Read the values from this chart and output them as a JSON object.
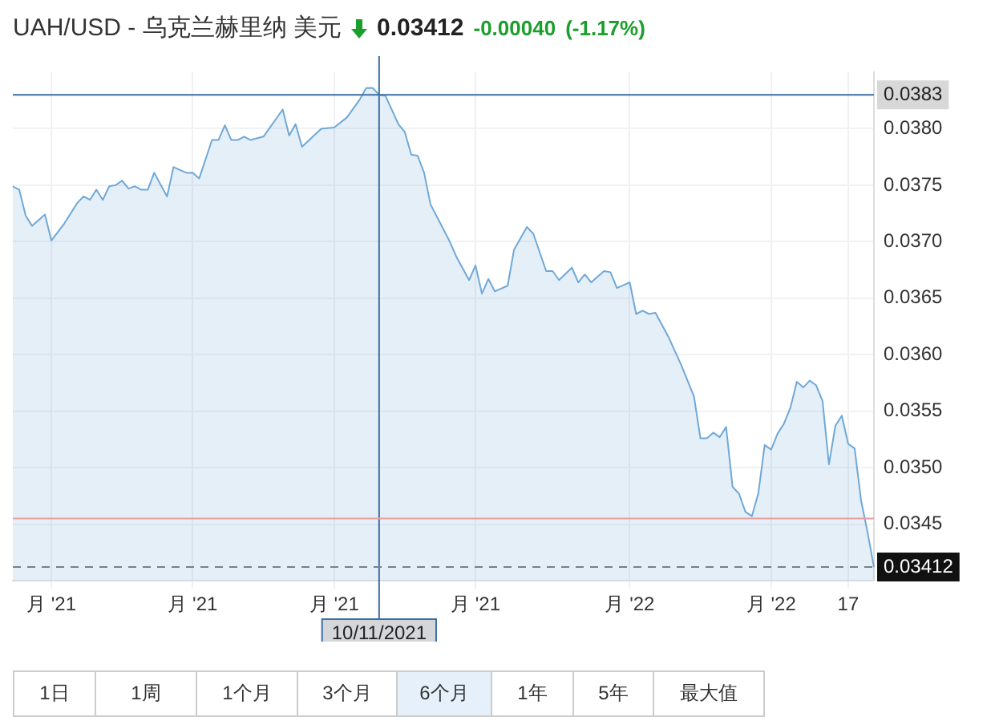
{
  "chart_data": {
    "type": "area",
    "title": "UAH/USD - 乌克兰赫里纳 美元",
    "annotations": [
      "0.03412",
      "-0.00040",
      "(-1.17%)",
      "1日",
      "1周",
      "1个月",
      "3个月",
      "6个月",
      "1年",
      "5年",
      "最大值"
    ],
    "categories": [
      null,
      null,
      null,
      null,
      null,
      null,
      "月 '21",
      null,
      null,
      null,
      null,
      null,
      null,
      null,
      null,
      null,
      null,
      null,
      null,
      null,
      null,
      null,
      null,
      null,
      null,
      null,
      null,
      null,
      "月 '21",
      null,
      null,
      null,
      null,
      null,
      null,
      null,
      null,
      null,
      null,
      null,
      null,
      null,
      null,
      null,
      null,
      null,
      null,
      null,
      null,
      null,
      "月 '21",
      null,
      null,
      null,
      null,
      null,
      null,
      "10/11/2021",
      null,
      null,
      null,
      null,
      null,
      null,
      null,
      null,
      null,
      null,
      null,
      null,
      null,
      null,
      "月 '21",
      null,
      null,
      null,
      null,
      null,
      null,
      null,
      null,
      null,
      null,
      null,
      null,
      null,
      null,
      null,
      null,
      null,
      null,
      null,
      null,
      null,
      null,
      null,
      "月 '22",
      null,
      null,
      null,
      null,
      null,
      null,
      null,
      null,
      null,
      null,
      null,
      null,
      null,
      null,
      null,
      null,
      null,
      null,
      null,
      null,
      null,
      "月 '22",
      null,
      null,
      null,
      null,
      null,
      null,
      null,
      null,
      null,
      null,
      null,
      "17",
      null,
      null,
      null,
      null
    ],
    "series": [
      {
        "color": "#6fa8d8",
        "values": [
          0.03749,
          0.03746,
          0.03723,
          0.03714,
          null,
          0.03724,
          0.03701,
          null,
          0.03716,
          null,
          0.03734,
          0.0374,
          0.03737,
          0.03746,
          0.03737,
          0.03749,
          0.0375,
          0.03754,
          0.03747,
          0.03749,
          0.03746,
          0.03746,
          0.03761,
          null,
          0.0374,
          0.03766,
          null,
          0.03761,
          0.03761,
          0.03756,
          null,
          0.0379,
          0.0379,
          0.03803,
          0.0379,
          0.0379,
          0.03793,
          0.0379,
          null,
          0.03793,
          null,
          null,
          0.03817,
          0.03794,
          0.03804,
          0.03784,
          null,
          null,
          0.038,
          null,
          0.03801,
          null,
          0.0381,
          null,
          0.03826,
          0.03836,
          0.03836,
          0.0383,
          0.03829,
          null,
          0.03804,
          0.03797,
          0.03777,
          0.03776,
          0.03761,
          0.03733,
          null,
          null,
          0.037,
          0.03687,
          null,
          0.03666,
          0.03679,
          0.03654,
          0.03667,
          0.03656,
          null,
          0.03661,
          0.03693,
          null,
          0.03713,
          0.03707,
          null,
          0.03674,
          0.03674,
          0.03666,
          null,
          0.03677,
          0.03664,
          0.03671,
          0.03664,
          null,
          0.03674,
          0.03673,
          0.03659,
          null,
          0.03664,
          0.03636,
          0.03639,
          0.03636,
          0.03637,
          null,
          0.03616,
          null,
          0.03591,
          null,
          0.03563,
          0.03526,
          0.03526,
          0.03531,
          0.03527,
          0.03536,
          0.03483,
          0.03477,
          0.03461,
          0.03457,
          0.03477,
          0.0352,
          0.03516,
          0.0353,
          0.03539,
          0.03553,
          0.03576,
          0.03571,
          0.03577,
          0.03573,
          0.03559,
          0.03503,
          0.03537,
          0.03546,
          0.03521,
          0.03517,
          0.03471,
          0.03443,
          0.03412
        ]
      }
    ],
    "ylim": [
      0.034,
      0.0385
    ],
    "yticks": [
      0.0345,
      {
        "value": 0.035,
        "label": "0.0350"
      },
      0.0355,
      {
        "value": 0.036,
        "label": "0.0360"
      },
      0.0365,
      {
        "value": 0.037,
        "label": "0.0370"
      },
      0.0375,
      {
        "value": 0.038,
        "label": "0.0380"
      }
    ],
    "grid": true,
    "ref_lines": [
      {
        "axis": "x",
        "value": "10/11/2021",
        "color": "#3d6fa3"
      },
      {
        "axis": "y",
        "value": 0.0383,
        "label": "0.0383",
        "color": "#3d6fa3"
      },
      {
        "axis": "y",
        "value": 0.03455,
        "color": "#e8a0a0"
      },
      {
        "axis": "y",
        "value": 0.03412,
        "label": "0.03412",
        "color": "#7a7f86",
        "line_style": "dashed"
      }
    ]
  }
}
